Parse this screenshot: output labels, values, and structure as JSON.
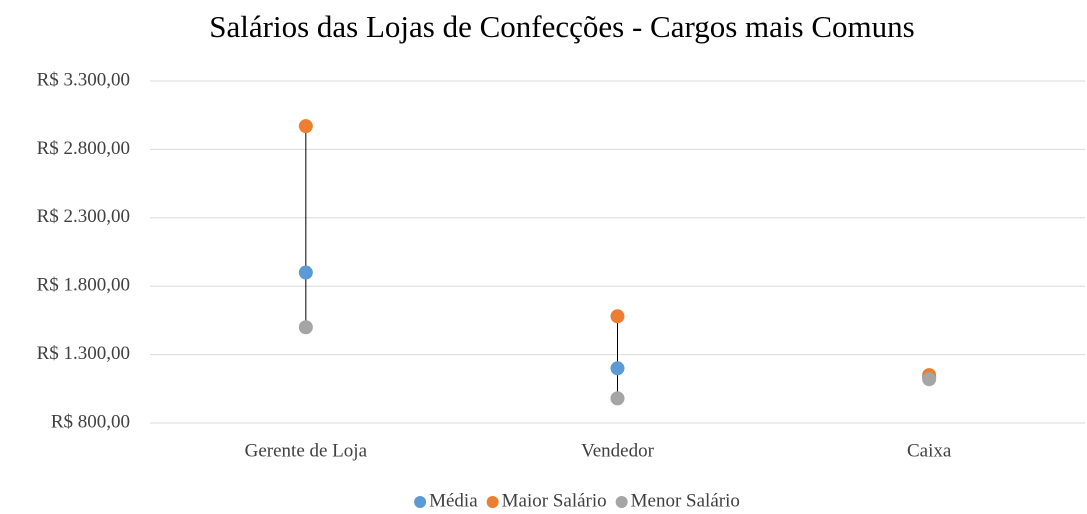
{
  "chart_data": {
    "type": "dot",
    "title": "Salários das Lojas de Confecções - Cargos mais Comuns",
    "categories": [
      "Gerente de Loja",
      "Vendedor",
      "Caixa"
    ],
    "series": [
      {
        "name": "Média",
        "color": "#5b9bd5",
        "values": [
          1900,
          1200,
          1135
        ]
      },
      {
        "name": "Maior Salário",
        "color": "#ed7d31",
        "values": [
          2970,
          1580,
          1150
        ]
      },
      {
        "name": "Menor Salário",
        "color": "#a5a5a5",
        "values": [
          1500,
          980,
          1120
        ]
      }
    ],
    "ylim": [
      800,
      3300
    ],
    "yticks": [
      {
        "value": 800,
        "label": "R$ 800,00"
      },
      {
        "value": 1300,
        "label": "R$ 1.300,00"
      },
      {
        "value": 1800,
        "label": "R$ 1.800,00"
      },
      {
        "value": 2300,
        "label": "R$ 2.300,00"
      },
      {
        "value": 2800,
        "label": "R$ 2.800,00"
      },
      {
        "value": 3300,
        "label": "R$ 3.300,00"
      }
    ],
    "grid": true,
    "high_low_lines": true,
    "legend": "bottom"
  }
}
